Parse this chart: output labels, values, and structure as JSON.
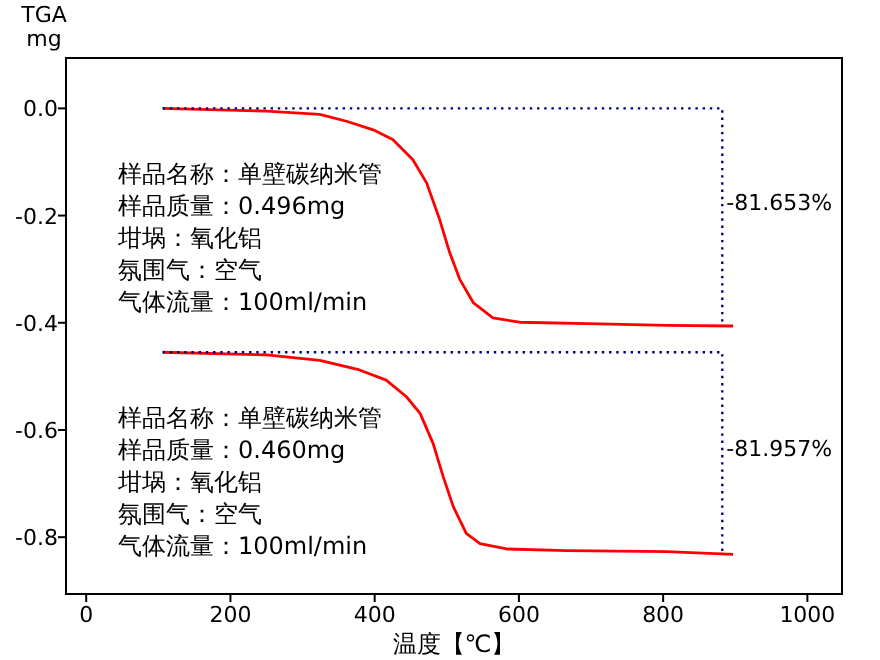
{
  "chart_data": {
    "type": "line",
    "xlabel": "温度【℃】",
    "ylabel": "TGA mg",
    "xlim": [
      -28,
      1048
    ],
    "ylim": [
      -0.906,
      0.094
    ],
    "xticks": [
      0,
      200,
      400,
      600,
      800,
      1000
    ],
    "yticks": [
      {
        "value": 0,
        "label": "0.0"
      },
      -0.2,
      -0.4,
      -0.6,
      -0.8
    ],
    "marker": "none",
    "series": [
      {
        "color": "#ff0000",
        "line_style": "solid",
        "x": [
          106,
          250,
          324,
          361,
          398,
          425,
          453,
          472,
          490,
          504,
          518,
          537,
          564,
          601,
          712,
          805,
          897
        ],
        "values": [
          0,
          -0.005,
          -0.011,
          -0.024,
          -0.04,
          -0.058,
          -0.096,
          -0.139,
          -0.207,
          -0.269,
          -0.319,
          -0.363,
          -0.391,
          -0.399,
          -0.402,
          -0.405,
          -0.406
        ]
      },
      {
        "color": "#ff0000",
        "line_style": "solid",
        "x": [
          106,
          250,
          324,
          379,
          416,
          444,
          463,
          481,
          495,
          509,
          527,
          546,
          583,
          666,
          805,
          897
        ],
        "values": [
          -0.455,
          -0.46,
          -0.47,
          -0.488,
          -0.507,
          -0.538,
          -0.569,
          -0.625,
          -0.687,
          -0.743,
          -0.793,
          -0.812,
          -0.822,
          -0.825,
          -0.827,
          -0.832
        ]
      },
      {
        "color": "#000080",
        "line_style": "dotted",
        "x": [
          106,
          882,
          882
        ],
        "values": [
          0,
          0,
          -0.405
        ]
      },
      {
        "color": "#000080",
        "line_style": "dotted",
        "x": [
          106,
          882,
          882
        ],
        "values": [
          -0.455,
          -0.455,
          -0.83
        ]
      }
    ],
    "annotations": [
      "样品名称：单壁碳纳米管",
      "样品质量：0.496mg",
      "坩埚：氧化铝",
      "氛围气：空气",
      "气体流量：100ml/min",
      "样品名称：单壁碳纳米管",
      "样品质量：0.460mg",
      "坩埚：氧化铝",
      "氛围气：空气",
      "气体流量：100ml/min",
      {
        "text": "-81.653%",
        "x": 882,
        "y": -0.17
      },
      {
        "text": "-81.957%",
        "x": 882,
        "y": -0.63
      }
    ]
  }
}
